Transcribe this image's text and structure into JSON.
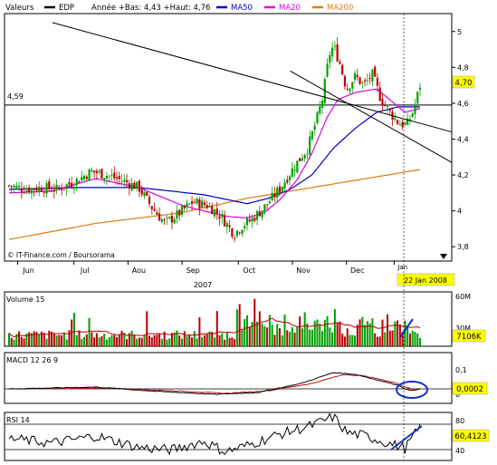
{
  "colors": {
    "background": "#ffffff",
    "price_up": "#00a000",
    "price_down": "#b80000",
    "ma50": "#0000c0",
    "ma20": "#e000e0",
    "ma200": "#e07a10",
    "macd_line": "#000000",
    "macd_signal": "#c01010",
    "volume_avg": "#b80000",
    "current_value_bg": "#ffff00",
    "date_badge_bg": "#ffff00",
    "annotation": "#1030d0"
  },
  "chart_data": [
    {
      "id": "price",
      "type": "candlestick",
      "legend": [
        {
          "label": "Valeurs",
          "marker": "none"
        },
        {
          "label": "EDP",
          "marker": "line",
          "color": "#000000"
        },
        {
          "label": "Année +Bas: 4,43 +Haut: 4,76",
          "marker": "none"
        },
        {
          "label": "MA50",
          "marker": "line",
          "color": "#0000c0"
        },
        {
          "label": "MA20",
          "marker": "line",
          "color": "#e000e0"
        },
        {
          "label": "MA200",
          "marker": "line",
          "color": "#e07a10"
        }
      ],
      "ylim": [
        3.72,
        5.1
      ],
      "yticks": [
        "5",
        "4,8",
        "4,6",
        "4,4",
        "4,2",
        "4",
        "3,8"
      ],
      "ytick_values": [
        5.0,
        4.8,
        4.6,
        4.4,
        4.2,
        4.0,
        3.8
      ],
      "x_months": [
        "Jun",
        "Jul",
        "Aou",
        "Sep",
        "Oct",
        "Nov",
        "Dec",
        "Jan"
      ],
      "x_year": "2007",
      "date_badge": "22 Jan 2008",
      "horizontal_line": {
        "value": 4.59,
        "label": "4,59"
      },
      "current_value": "4,70",
      "copyright": "© IT-Finance.com / Boursorama",
      "n_days": 165,
      "close_anchors": [
        [
          0,
          4.14
        ],
        [
          8,
          4.12
        ],
        [
          15,
          4.13
        ],
        [
          22,
          4.12
        ],
        [
          30,
          4.16
        ],
        [
          38,
          4.22
        ],
        [
          45,
          4.2
        ],
        [
          52,
          4.17
        ],
        [
          60,
          4.13
        ],
        [
          66,
          4.02
        ],
        [
          72,
          3.93
        ],
        [
          78,
          3.98
        ],
        [
          85,
          4.05
        ],
        [
          92,
          4.03
        ],
        [
          98,
          3.97
        ],
        [
          104,
          3.87
        ],
        [
          108,
          3.92
        ],
        [
          112,
          3.95
        ],
        [
          118,
          4.02
        ],
        [
          125,
          4.12
        ],
        [
          132,
          4.25
        ],
        [
          138,
          4.35
        ],
        [
          142,
          4.5
        ],
        [
          145,
          4.63
        ],
        [
          148,
          4.87
        ],
        [
          150,
          4.92
        ],
        [
          153,
          4.82
        ],
        [
          156,
          4.68
        ],
        [
          160,
          4.75
        ],
        [
          164,
          4.7
        ],
        [
          168,
          4.76
        ],
        [
          172,
          4.62
        ],
        [
          176,
          4.55
        ],
        [
          180,
          4.49
        ],
        [
          184,
          4.48
        ],
        [
          187,
          4.56
        ],
        [
          190,
          4.7
        ]
      ],
      "ma20_anchors": [
        [
          0,
          4.1
        ],
        [
          20,
          4.11
        ],
        [
          40,
          4.18
        ],
        [
          60,
          4.13
        ],
        [
          80,
          4.03
        ],
        [
          100,
          3.97
        ],
        [
          110,
          3.96
        ],
        [
          118,
          3.99
        ],
        [
          125,
          4.06
        ],
        [
          133,
          4.17
        ],
        [
          140,
          4.32
        ],
        [
          147,
          4.52
        ],
        [
          152,
          4.62
        ],
        [
          160,
          4.66
        ],
        [
          170,
          4.68
        ],
        [
          178,
          4.6
        ],
        [
          183,
          4.55
        ],
        [
          190,
          4.57
        ]
      ],
      "ma50_anchors": [
        [
          0,
          4.12
        ],
        [
          30,
          4.13
        ],
        [
          60,
          4.13
        ],
        [
          90,
          4.09
        ],
        [
          110,
          4.04
        ],
        [
          120,
          4.07
        ],
        [
          130,
          4.12
        ],
        [
          140,
          4.2
        ],
        [
          150,
          4.35
        ],
        [
          160,
          4.46
        ],
        [
          170,
          4.55
        ],
        [
          180,
          4.58
        ],
        [
          190,
          4.58
        ]
      ],
      "ma200_anchors": [
        [
          0,
          3.84
        ],
        [
          40,
          3.93
        ],
        [
          80,
          3.99
        ],
        [
          110,
          4.07
        ],
        [
          140,
          4.13
        ],
        [
          170,
          4.19
        ],
        [
          190,
          4.23
        ]
      ],
      "trendlines": [
        {
          "from": [
            20,
            5.05
          ],
          "to": [
            215,
            4.44
          ]
        },
        {
          "from": [
            130,
            4.78
          ],
          "to": [
            215,
            4.27
          ]
        }
      ]
    },
    {
      "id": "volume",
      "type": "bar",
      "label": "Volume 15",
      "yticks": [
        "60M",
        "30M"
      ],
      "current_value": "7106K"
    },
    {
      "id": "macd",
      "type": "line",
      "label": "MACD 12 26 9",
      "yticks": [
        "0,1",
        "0"
      ],
      "current_value": "0,0002"
    },
    {
      "id": "rsi",
      "type": "line",
      "label": "RSI 14",
      "yticks": [
        "80",
        "60",
        "40"
      ],
      "current_value": "60,4123"
    }
  ]
}
